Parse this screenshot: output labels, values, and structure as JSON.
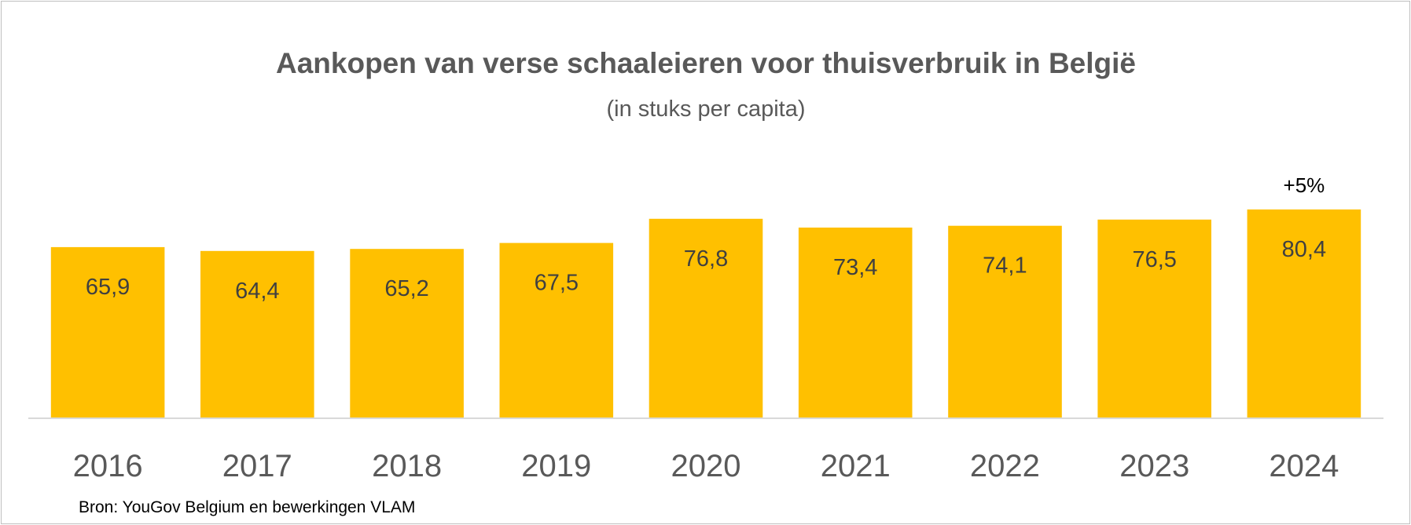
{
  "chart_data": {
    "type": "bar",
    "title": "Aankopen van verse schaaleieren voor thuisverbruik in België",
    "subtitle": "(in stuks per capita)",
    "categories": [
      "2016",
      "2017",
      "2018",
      "2019",
      "2020",
      "2021",
      "2022",
      "2023",
      "2024"
    ],
    "values": [
      65.9,
      64.4,
      65.2,
      67.5,
      76.8,
      73.4,
      74.1,
      76.5,
      80.4
    ],
    "data_labels": [
      "65,9",
      "64,4",
      "65,2",
      "67,5",
      "76,8",
      "73,4",
      "74,1",
      "76,5",
      "80,4"
    ],
    "annotations": [
      {
        "category": "2024",
        "text": "+5%"
      }
    ],
    "xlabel": "",
    "ylabel": "",
    "ylim": [
      0,
      80.4
    ],
    "grid": false,
    "legend": "none",
    "bar_color": "#FFC000",
    "source": "Bron: YouGov Belgium en bewerkingen VLAM"
  }
}
